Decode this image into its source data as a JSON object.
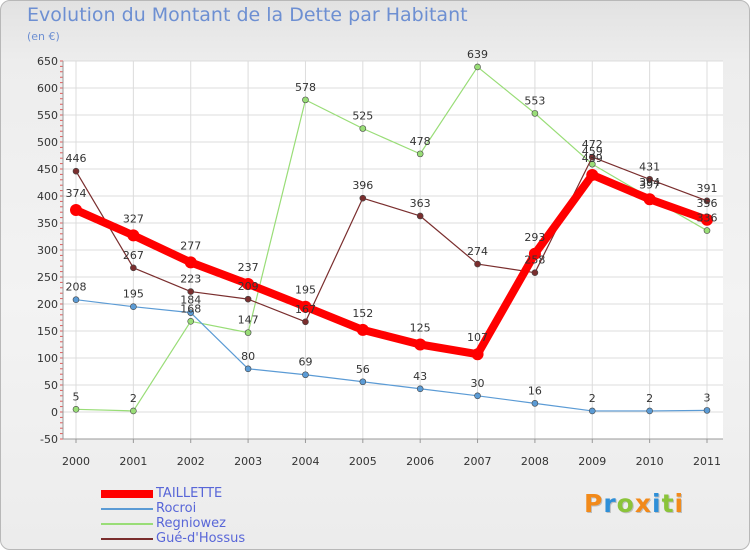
{
  "title": "Evolution du Montant de la Dette par Habitant",
  "subtitle": "(en €)",
  "logo": {
    "text": "Proxiti",
    "colors": [
      "#f28a1a",
      "#2e8fd8",
      "#8bc43a",
      "#f28a1a",
      "#2e8fd8",
      "#8bc43a",
      "#f28a1a"
    ]
  },
  "chart_data": {
    "type": "line",
    "title": "Evolution du Montant de la Dette par Habitant",
    "subtitle": "(en €)",
    "x": [
      "2000",
      "2001",
      "2002",
      "2003",
      "2004",
      "2005",
      "2006",
      "2007",
      "2008",
      "2009",
      "2010",
      "2011"
    ],
    "ylim": [
      -50,
      650
    ],
    "yticks": [
      -50,
      0,
      50,
      100,
      150,
      200,
      250,
      300,
      350,
      400,
      450,
      500,
      550,
      600,
      650
    ],
    "grid": true,
    "legend_position": "bottom-left",
    "series": [
      {
        "name": "TAILLETTE",
        "color": "#ff0000",
        "values": [
          374,
          327,
          277,
          237,
          195,
          152,
          125,
          107,
          293,
          439,
          394,
          356
        ]
      },
      {
        "name": "Rocroi",
        "color": "#5b9bd5",
        "values": [
          208,
          195,
          184,
          80,
          69,
          56,
          43,
          30,
          16,
          2,
          2,
          3
        ]
      },
      {
        "name": "Regniowez",
        "color": "#99dd77",
        "values": [
          5,
          2,
          168,
          147,
          578,
          525,
          478,
          639,
          553,
          459,
          397,
          336
        ]
      },
      {
        "name": "Gué-d'Hossus",
        "color": "#7a2e2e",
        "values": [
          446,
          267,
          223,
          209,
          167,
          396,
          363,
          274,
          258,
          472,
          431,
          391
        ]
      }
    ]
  }
}
